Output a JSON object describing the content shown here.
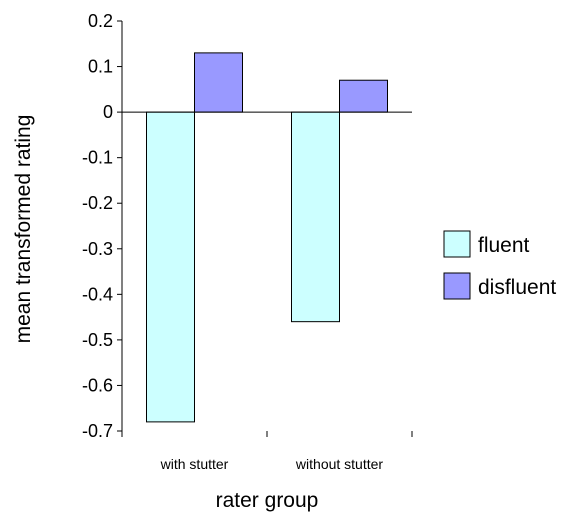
{
  "chart_data": {
    "type": "bar",
    "title": "",
    "xlabel": "rater group",
    "ylabel": "mean transformed rating",
    "categories": [
      "with stutter",
      "without stutter"
    ],
    "series": [
      {
        "name": "fluent",
        "values": [
          -0.68,
          -0.46
        ],
        "color": "#ccffff"
      },
      {
        "name": "disfluent",
        "values": [
          0.13,
          0.07
        ],
        "color": "#9999ff"
      }
    ],
    "ylim": [
      -0.7,
      0.2
    ],
    "yticks": [
      "0.2",
      "0.1",
      "0",
      "-0.1",
      "-0.2",
      "-0.3",
      "-0.4",
      "-0.5",
      "-0.6",
      "-0.7"
    ],
    "ytick_values": [
      0.2,
      0.1,
      0,
      -0.1,
      -0.2,
      -0.3,
      -0.4,
      -0.5,
      -0.6,
      -0.7
    ],
    "grid": false,
    "legend": "right"
  }
}
